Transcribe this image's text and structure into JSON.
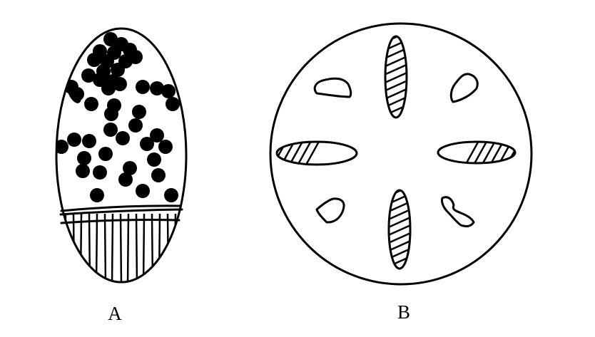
{
  "figure": {
    "label_a": "A",
    "label_b": "B"
  },
  "colors": {
    "ink": "#000000",
    "paper": "#ffffff"
  }
}
